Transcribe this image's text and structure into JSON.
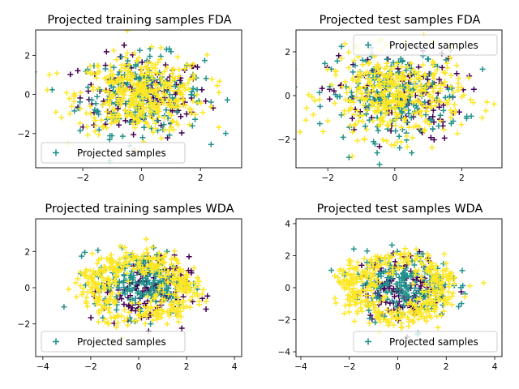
{
  "chart_data": [
    {
      "type": "scatter",
      "title": "Projected training samples FDA",
      "xlim": [
        -3.6,
        3.4
      ],
      "ylim": [
        -3.75,
        3.3
      ],
      "xticks": [
        -2,
        0,
        2
      ],
      "yticks": [
        -2,
        0,
        2
      ],
      "legend": {
        "label": "Projected samples",
        "position": "lower left"
      },
      "grid": false,
      "marker": "+",
      "colors": [
        "#440154",
        "#21918c",
        "#fde725"
      ],
      "point_clouds": [
        {
          "color": "#440154",
          "center": [
            0.1,
            -0.1
          ],
          "spread": [
            1.1,
            1.05
          ],
          "shape": "gaussian",
          "count": 130
        },
        {
          "color": "#21918c",
          "center": [
            0.0,
            0.0
          ],
          "spread": [
            1.05,
            1.0
          ],
          "shape": "gaussian",
          "count": 200
        },
        {
          "color": "#fde725",
          "center": [
            0.0,
            0.0
          ],
          "spread": [
            1.1,
            1.0
          ],
          "shape": "gaussian",
          "count": 400
        }
      ]
    },
    {
      "type": "scatter",
      "title": "Projected test samples FDA",
      "xlim": [
        -2.95,
        3.2
      ],
      "ylim": [
        -3.3,
        3.0
      ],
      "xticks": [
        -2,
        0,
        2
      ],
      "yticks": [
        -2,
        0,
        2
      ],
      "legend": {
        "label": "Projected samples",
        "position": "upper right"
      },
      "grid": false,
      "marker": "+",
      "colors": [
        "#440154",
        "#21918c",
        "#fde725"
      ],
      "point_clouds": [
        {
          "color": "#440154",
          "center": [
            0.0,
            -0.1
          ],
          "spread": [
            1.0,
            1.0
          ],
          "shape": "gaussian",
          "count": 130
        },
        {
          "color": "#21918c",
          "center": [
            0.0,
            0.0
          ],
          "spread": [
            1.0,
            1.0
          ],
          "shape": "gaussian",
          "count": 200
        },
        {
          "color": "#fde725",
          "center": [
            0.0,
            0.0
          ],
          "spread": [
            1.0,
            0.95
          ],
          "shape": "gaussian",
          "count": 380
        }
      ]
    },
    {
      "type": "scatter",
      "title": "Projected training samples WDA",
      "xlim": [
        -4.3,
        4.3
      ],
      "ylim": [
        -3.8,
        3.8
      ],
      "xticks": [
        -4,
        -2,
        0,
        2,
        4
      ],
      "yticks": [
        -2,
        0,
        2
      ],
      "legend": {
        "label": "Projected samples",
        "position": "lower left"
      },
      "grid": false,
      "marker": "+",
      "colors": [
        "#440154",
        "#21918c",
        "#fde725"
      ],
      "point_clouds": [
        {
          "color": "#440154",
          "center": [
            0.3,
            -0.2
          ],
          "spread": [
            0.9,
            0.95
          ],
          "shape": "gaussian",
          "count": 130
        },
        {
          "color": "#21918c",
          "center": [
            0.2,
            0.3
          ],
          "spread": [
            1.0,
            0.9
          ],
          "shape": "gaussian",
          "count": 200
        },
        {
          "color": "#fde725",
          "center": [
            0.0,
            0.0
          ],
          "spread": [
            2.6,
            2.5
          ],
          "shape": "ring",
          "count": 420
        }
      ]
    },
    {
      "type": "scatter",
      "title": "Projected test samples WDA",
      "xlim": [
        -4.2,
        4.3
      ],
      "ylim": [
        -4.3,
        4.3
      ],
      "xticks": [
        -4,
        -2,
        0,
        2,
        4
      ],
      "yticks": [
        -4,
        -2,
        0,
        2,
        4
      ],
      "legend": {
        "label": "Projected samples",
        "position": "lower right"
      },
      "grid": false,
      "marker": "+",
      "colors": [
        "#440154",
        "#21918c",
        "#fde725"
      ],
      "point_clouds": [
        {
          "color": "#440154",
          "center": [
            0.3,
            0.0
          ],
          "spread": [
            0.9,
            1.0
          ],
          "shape": "gaussian",
          "count": 130
        },
        {
          "color": "#21918c",
          "center": [
            0.2,
            0.2
          ],
          "spread": [
            1.0,
            1.0
          ],
          "shape": "gaussian",
          "count": 200
        },
        {
          "color": "#fde725",
          "center": [
            0.0,
            0.0
          ],
          "spread": [
            2.6,
            2.9
          ],
          "shape": "ring",
          "count": 400
        }
      ]
    }
  ]
}
